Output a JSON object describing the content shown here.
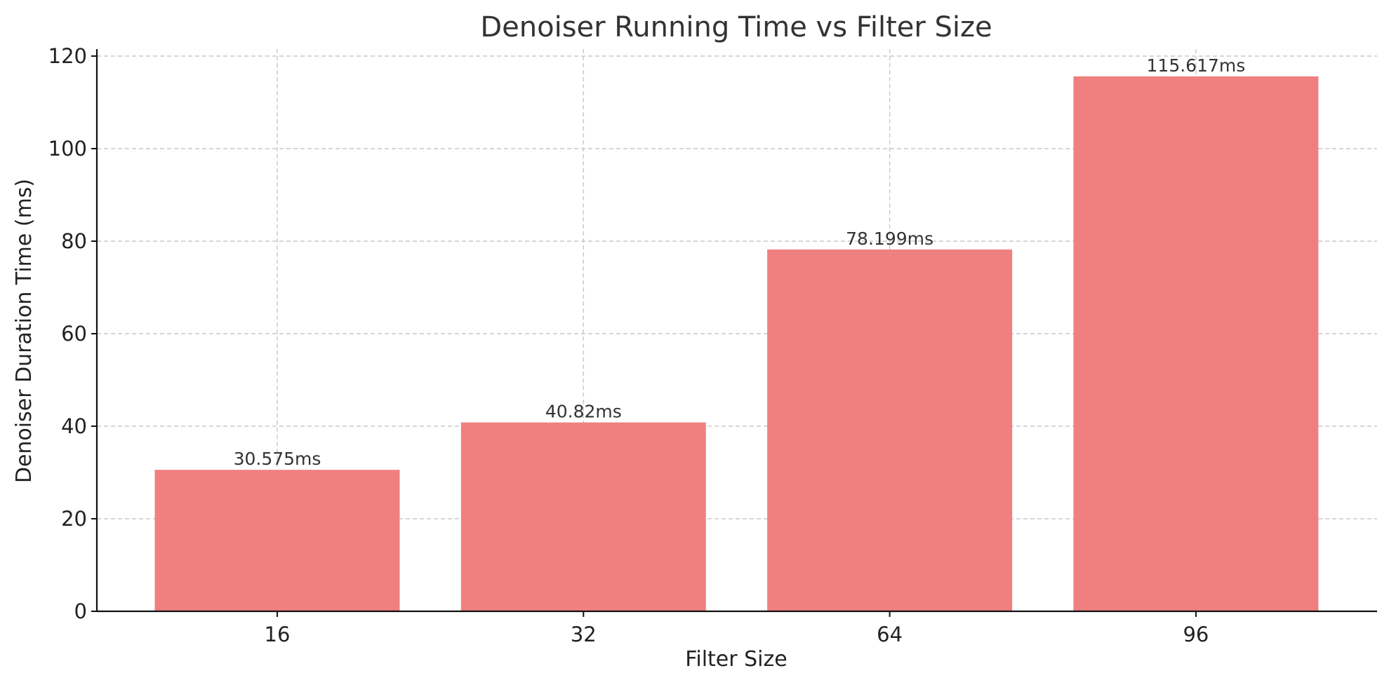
{
  "chart_data": {
    "type": "bar",
    "title": "Denoiser Running Time vs Filter Size",
    "xlabel": "Filter Size",
    "ylabel": "Denoiser Duration Time (ms)",
    "categories": [
      "16",
      "32",
      "64",
      "96"
    ],
    "values": [
      30.575,
      40.82,
      78.199,
      115.617
    ],
    "data_labels": [
      "30.575ms",
      "40.82ms",
      "78.199ms",
      "115.617ms"
    ],
    "ylim": [
      0,
      120
    ],
    "yticks": [
      0,
      20,
      40,
      60,
      80,
      100,
      120
    ],
    "grid": true,
    "bar_color": "#f08080"
  }
}
